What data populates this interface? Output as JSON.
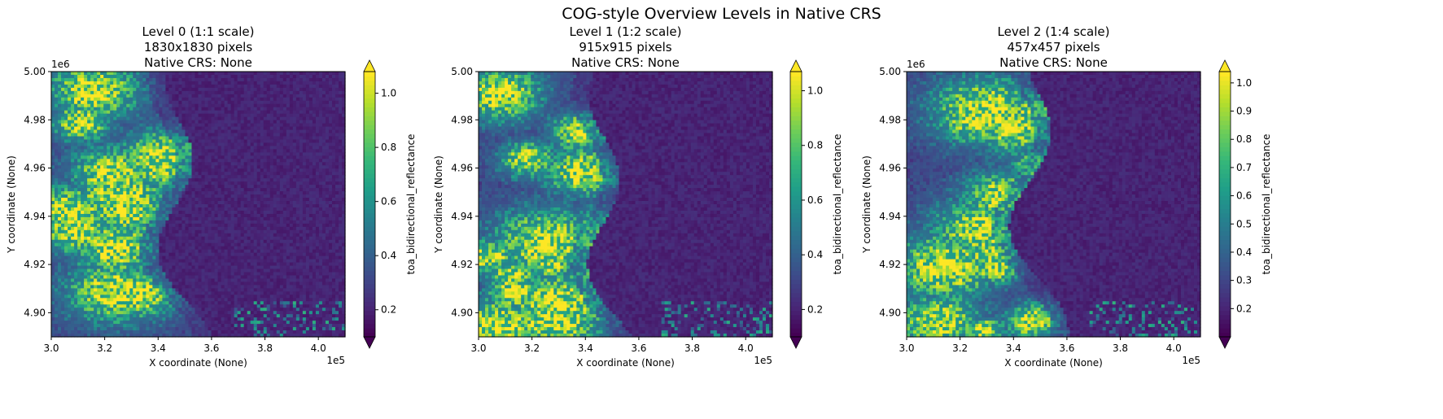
{
  "figure": {
    "suptitle": "COG-style Overview Levels in Native CRS"
  },
  "chart_data": [
    {
      "type": "heatmap",
      "title_lines": [
        "Level 0 (1:1 scale)",
        "1830x1830 pixels",
        "Native CRS: None"
      ],
      "xlabel": "X coordinate (None)",
      "ylabel": "Y coordinate (None)",
      "x_offset_label": "1e5",
      "y_offset_label": "1e6",
      "xlim": [
        3.0,
        4.1
      ],
      "ylim": [
        4.89,
        5.0
      ],
      "xticks": [
        3.0,
        3.2,
        3.4,
        3.6,
        3.8,
        4.0
      ],
      "xtick_labels": [
        "3.0",
        "3.2",
        "3.4",
        "3.6",
        "3.8",
        "4.0"
      ],
      "yticks": [
        4.9,
        4.92,
        4.94,
        4.96,
        4.98,
        5.0
      ],
      "ytick_labels": [
        "4.90",
        "4.92",
        "4.94",
        "4.96",
        "4.98",
        "5.00"
      ],
      "colorbar": {
        "label": "toa_bidirectional_reflectance",
        "colormap": "viridis",
        "range": [
          0.1,
          1.08
        ],
        "extend": "both",
        "ticks": [
          0.2,
          0.4,
          0.6,
          0.8,
          1.0
        ],
        "tick_labels": [
          "0.2",
          "0.4",
          "0.6",
          "0.8",
          "1.0"
        ]
      },
      "seed": 11
    },
    {
      "type": "heatmap",
      "title_lines": [
        "Level 1 (1:2 scale)",
        "915x915 pixels",
        "Native CRS: None"
      ],
      "xlabel": "X coordinate (None)",
      "ylabel": "Y coordinate (None)",
      "x_offset_label": "1e5",
      "y_offset_label": "",
      "xlim": [
        3.0,
        4.1
      ],
      "ylim": [
        4.89,
        5.0
      ],
      "xticks": [
        3.0,
        3.2,
        3.4,
        3.6,
        3.8,
        4.0
      ],
      "xtick_labels": [
        "3.0",
        "3.2",
        "3.4",
        "3.6",
        "3.8",
        "4.0"
      ],
      "yticks": [
        4.9,
        4.92,
        4.94,
        4.96,
        4.98,
        5.0
      ],
      "ytick_labels": [
        "4.90",
        "4.92",
        "4.94",
        "4.96",
        "4.98",
        "5.00"
      ],
      "colorbar": {
        "label": "toa_bidirectional_reflectance",
        "colormap": "viridis",
        "range": [
          0.1,
          1.07
        ],
        "extend": "both",
        "ticks": [
          0.2,
          0.4,
          0.6,
          0.8,
          1.0
        ],
        "tick_labels": [
          "0.2",
          "0.4",
          "0.6",
          "0.8",
          "1.0"
        ]
      },
      "seed": 23
    },
    {
      "type": "heatmap",
      "title_lines": [
        "Level 2 (1:4 scale)",
        "457x457 pixels",
        "Native CRS: None"
      ],
      "xlabel": "X coordinate (None)",
      "ylabel": "Y coordinate (None)",
      "x_offset_label": "1e5",
      "y_offset_label": "1e6",
      "xlim": [
        3.0,
        4.1
      ],
      "ylim": [
        4.89,
        5.0
      ],
      "xticks": [
        3.0,
        3.2,
        3.4,
        3.6,
        3.8,
        4.0
      ],
      "xtick_labels": [
        "3.0",
        "3.2",
        "3.4",
        "3.6",
        "3.8",
        "4.0"
      ],
      "yticks": [
        4.9,
        4.92,
        4.94,
        4.96,
        4.98,
        5.0
      ],
      "ytick_labels": [
        "4.90",
        "4.92",
        "4.94",
        "4.96",
        "4.98",
        "5.00"
      ],
      "colorbar": {
        "label": "toa_bidirectional_reflectance",
        "colormap": "viridis",
        "range": [
          0.1,
          1.04
        ],
        "extend": "both",
        "ticks": [
          0.2,
          0.3,
          0.4,
          0.5,
          0.6,
          0.7,
          0.8,
          0.9,
          1.0
        ],
        "tick_labels": [
          "0.2",
          "0.3",
          "0.4",
          "0.5",
          "0.6",
          "0.7",
          "0.8",
          "0.9",
          "1.0"
        ]
      },
      "seed": 37
    }
  ]
}
